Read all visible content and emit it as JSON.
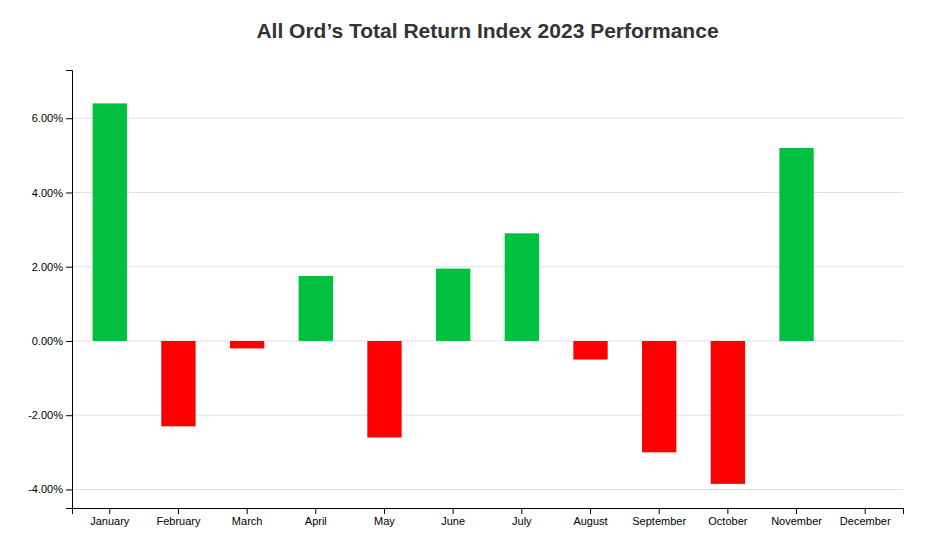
{
  "chart_data": {
    "type": "bar",
    "title": "All Ord’s Total Return Index 2023 Performance",
    "categories": [
      "January",
      "February",
      "March",
      "April",
      "May",
      "June",
      "July",
      "August",
      "September",
      "October",
      "November",
      "December"
    ],
    "values": [
      6.4,
      -2.3,
      -0.2,
      1.75,
      -2.6,
      1.95,
      2.9,
      -0.5,
      -3.0,
      -3.85,
      5.2,
      0.0
    ],
    "colors": [
      "#00C040",
      "#FF0000",
      "#FF0000",
      "#00C040",
      "#FF0000",
      "#00C040",
      "#00C040",
      "#FF0000",
      "#FF0000",
      "#FF0000",
      "#00C040",
      "#FF0000"
    ],
    "ylim": [
      -4.5,
      7.3
    ],
    "yticks": [
      {
        "value": -4.0,
        "label": "-4.00%"
      },
      {
        "value": -2.0,
        "label": "-2.00%"
      },
      {
        "value": 0.0,
        "label": "0.00%"
      },
      {
        "value": 2.0,
        "label": "2.00%"
      },
      {
        "value": 4.0,
        "label": "4.00%"
      },
      {
        "value": 6.0,
        "label": "6.00%"
      }
    ],
    "grid": true
  }
}
